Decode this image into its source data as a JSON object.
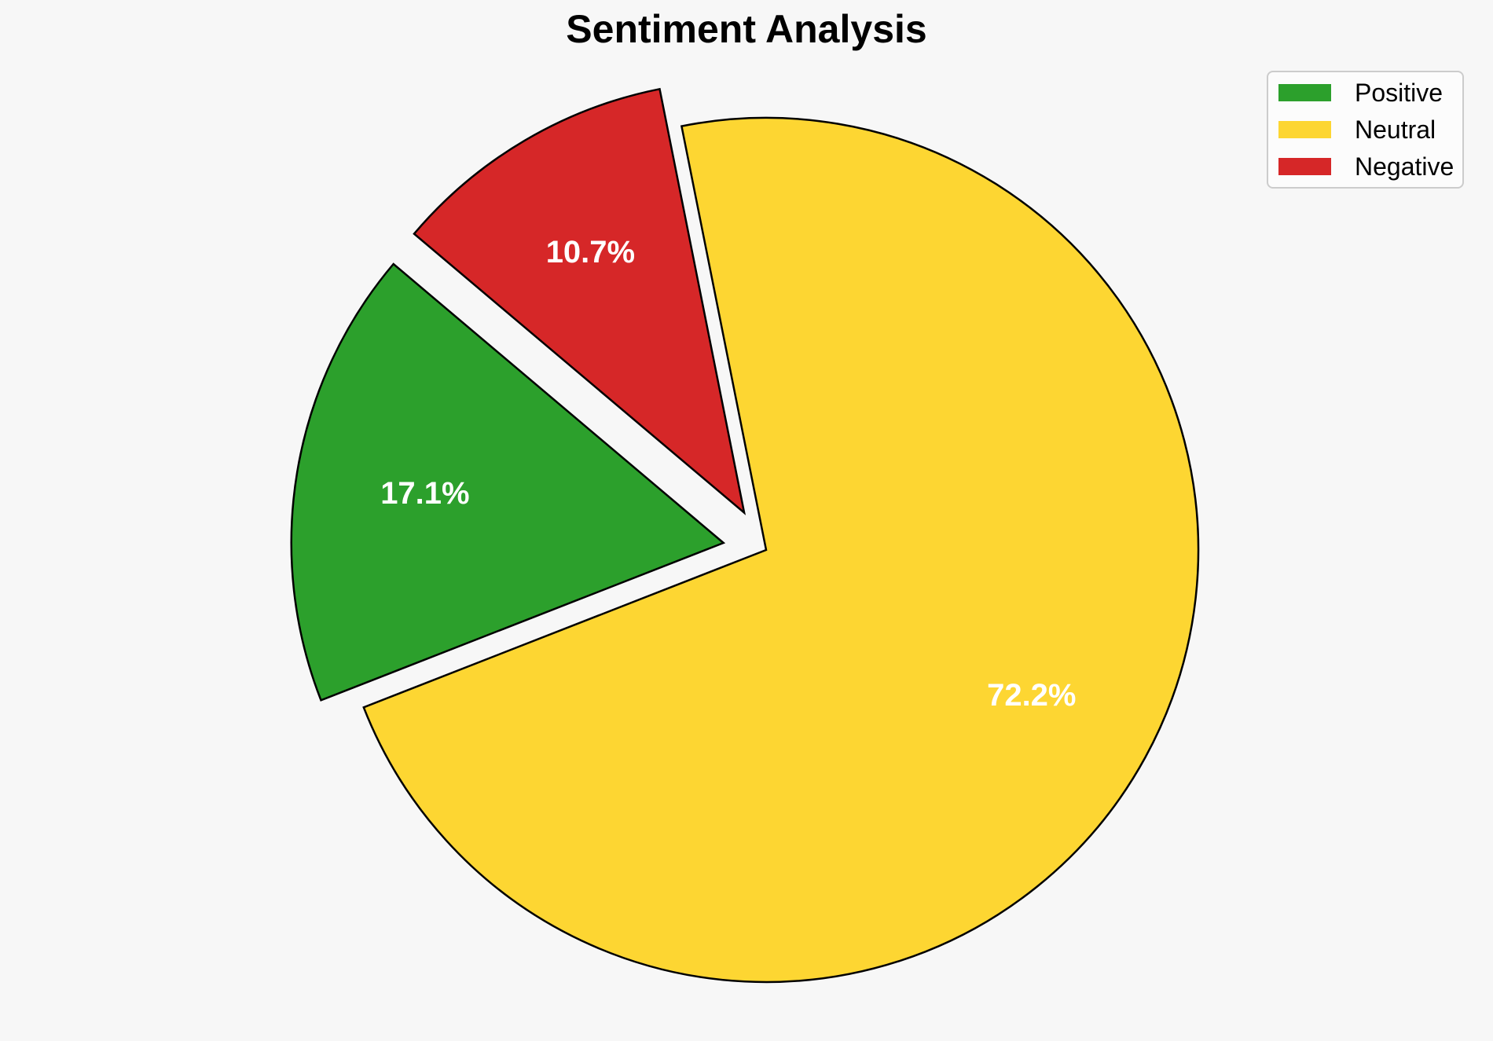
{
  "page": {
    "background_color": "#f7f7f7"
  },
  "chart_data": {
    "type": "pie",
    "title": "Sentiment Analysis",
    "slices": [
      {
        "label": "Positive",
        "value": 17.1,
        "pct_label": "17.1%",
        "color": "#2ca02c",
        "explode": 0.1
      },
      {
        "label": "Neutral",
        "value": 72.2,
        "pct_label": "72.2%",
        "color": "#fdd632",
        "explode": 0.0
      },
      {
        "label": "Negative",
        "value": 10.7,
        "pct_label": "10.7%",
        "color": "#d62728",
        "explode": 0.1
      }
    ],
    "start_angle_deg": 139.8,
    "direction": "counterclockwise",
    "edge_color": "#000000",
    "pct_label_color": "#ffffff",
    "pct_label_distance": 0.7,
    "legend": {
      "position": "upper-right",
      "entries": [
        "Positive",
        "Neutral",
        "Negative"
      ]
    }
  }
}
